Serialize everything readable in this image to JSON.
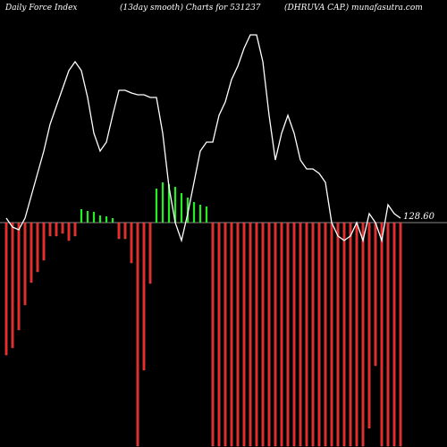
{
  "header": {
    "left": "Daily Force  Index",
    "center": "(13day smooth) Charts for 531237",
    "right": "(DHRUVA CAP.) munafasutra.com"
  },
  "chart_data": {
    "type": "bar",
    "title": "Daily Force Index (13day smooth) Charts for 531237",
    "zero_label": "128.60",
    "colors": {
      "positive": "#22ee22",
      "negative": "#ee2222",
      "line": "#ffffff",
      "zero_line": "#888888",
      "background": "#000000"
    },
    "bars": [
      -148,
      -140,
      -120,
      -92,
      -67,
      -55,
      -42,
      -15,
      -15,
      -12,
      -20,
      -15,
      15,
      13,
      12,
      8,
      7,
      5,
      -18,
      -18,
      -45,
      -250,
      -165,
      -68,
      38,
      45,
      43,
      40,
      33,
      28,
      23,
      20,
      18,
      -250,
      -250,
      -250,
      -250,
      -250,
      -250,
      -250,
      -250,
      -250,
      -250,
      -250,
      -250,
      -250,
      -250,
      -250,
      -250,
      -250,
      -250,
      -250,
      -250,
      -250,
      -250,
      -250,
      -250,
      -250,
      -230,
      -160,
      -250,
      -250,
      -250,
      -250
    ],
    "line": [
      5,
      -5,
      -8,
      5,
      30,
      55,
      80,
      110,
      130,
      150,
      170,
      180,
      170,
      140,
      100,
      80,
      90,
      120,
      148,
      148,
      145,
      143,
      143,
      140,
      140,
      100,
      40,
      0,
      -20,
      10,
      45,
      80,
      90,
      90,
      120,
      135,
      160,
      175,
      195,
      210,
      210,
      180,
      120,
      70,
      100,
      120,
      100,
      70,
      60,
      60,
      55,
      45,
      0,
      -15,
      -20,
      -15,
      0,
      -20,
      10,
      0,
      -20,
      20,
      10,
      5
    ]
  }
}
